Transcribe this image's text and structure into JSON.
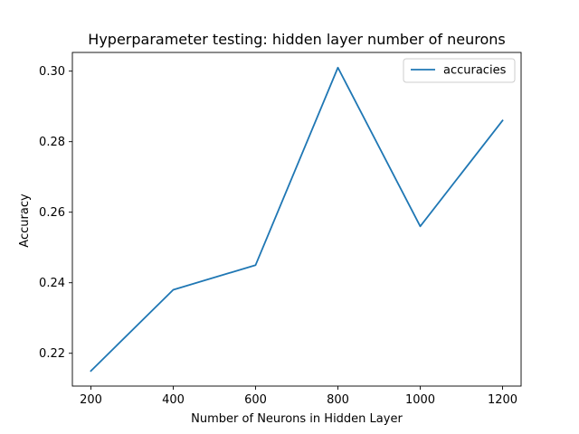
{
  "chart_data": {
    "type": "line",
    "title": "Hyperparameter testing: hidden layer number of neurons",
    "xlabel": "Number of Neurons in Hidden Layer",
    "ylabel": "Accuracy",
    "x": [
      200,
      400,
      600,
      800,
      1000,
      1200
    ],
    "series": [
      {
        "name": "accuracies",
        "values": [
          0.215,
          0.238,
          0.245,
          0.301,
          0.256,
          0.286
        ],
        "color": "#1f77b4"
      }
    ],
    "xlim": [
      155,
      1245
    ],
    "ylim": [
      0.2107,
      0.3053
    ],
    "xticks": [
      200,
      400,
      600,
      800,
      1000,
      1200
    ],
    "yticks": [
      0.22,
      0.24,
      0.26,
      0.28,
      0.3
    ],
    "ytick_labels": [
      "0.22",
      "0.24",
      "0.26",
      "0.28",
      "0.30"
    ],
    "grid": false,
    "legend_position": "upper-right"
  }
}
